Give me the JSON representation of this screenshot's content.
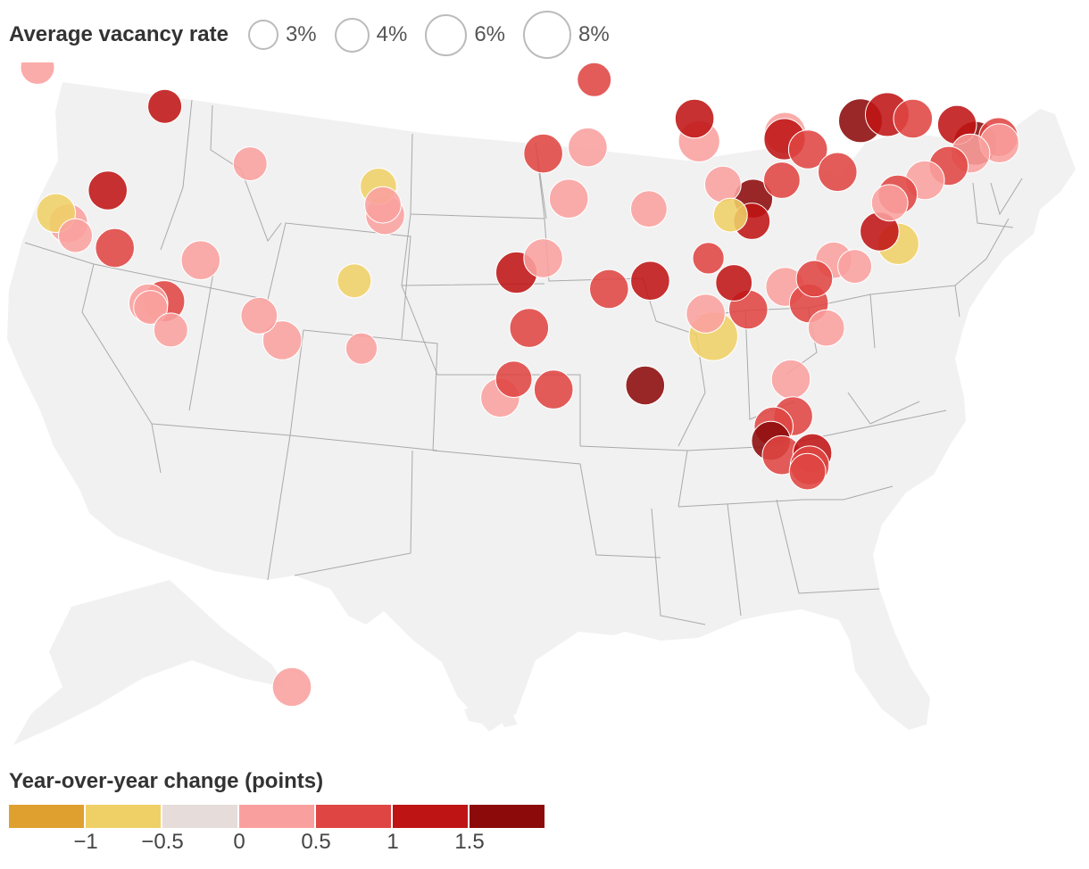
{
  "size_legend": {
    "title": "Average vacancy rate",
    "items": [
      {
        "label": "3%",
        "rate": 3
      },
      {
        "label": "4%",
        "rate": 4
      },
      {
        "label": "6%",
        "rate": 6
      },
      {
        "label": "8%",
        "rate": 8
      }
    ]
  },
  "color_legend": {
    "title": "Year-over-year change (points)",
    "bins": [
      {
        "color": "#e0a030"
      },
      {
        "color": "#efd066"
      },
      {
        "color": "#e6dcda"
      },
      {
        "color": "#f9a09e"
      },
      {
        "color": "#df4542"
      },
      {
        "color": "#bf1414"
      },
      {
        "color": "#8c0a0a"
      }
    ],
    "ticks": [
      "−1",
      "−0.5",
      "0",
      "0.5",
      "1",
      "1.5"
    ]
  },
  "chart_data": {
    "type": "proportional-symbol-map",
    "region": "United States (contiguous, metro areas)",
    "size_variable": "Average vacancy rate (%)",
    "color_variable": "Year-over-year change (points)",
    "color_breaks": [
      -1,
      -0.5,
      0,
      0.5,
      1,
      1.5
    ],
    "points": [
      {
        "lon": -122.3,
        "lat": 47.6,
        "rate": 4,
        "change": 0.3
      },
      {
        "lon": -122.7,
        "lat": 45.5,
        "rate": 4,
        "change": 0.4
      },
      {
        "lon": -116.2,
        "lat": 43.6,
        "rate": 4,
        "change": 1.2
      },
      {
        "lon": -119.8,
        "lat": 39.5,
        "rate": 5,
        "change": 1.3
      },
      {
        "lon": -122.2,
        "lat": 37.9,
        "rate": 5,
        "change": 0.4
      },
      {
        "lon": -122.8,
        "lat": 38.4,
        "rate": 5,
        "change": -1
      },
      {
        "lon": -121.9,
        "lat": 37.3,
        "rate": 4,
        "change": 0.1
      },
      {
        "lon": -119.8,
        "lat": 36.7,
        "rate": 5,
        "change": 0.9
      },
      {
        "lon": -118.3,
        "lat": 34.0,
        "rate": 5,
        "change": 0.3
      },
      {
        "lon": -118.2,
        "lat": 33.8,
        "rate": 4,
        "change": 0.0
      },
      {
        "lon": -117.2,
        "lat": 32.7,
        "rate": 4,
        "change": 0.4
      },
      {
        "lon": -117.4,
        "lat": 34.1,
        "rate": 5.5,
        "change": 0.9
      },
      {
        "lon": -115.1,
        "lat": 36.1,
        "rate": 5,
        "change": 0.4
      },
      {
        "lon": -111.9,
        "lat": 40.8,
        "rate": 4,
        "change": 0.0
      },
      {
        "lon": -112.1,
        "lat": 33.4,
        "rate": 4.5,
        "change": 0.4
      },
      {
        "lon": -110.9,
        "lat": 32.2,
        "rate": 5,
        "change": 0.4
      },
      {
        "lon": -105.0,
        "lat": 39.7,
        "rate": 4.5,
        "change": -1
      },
      {
        "lon": -104.8,
        "lat": 38.8,
        "rate": 4.5,
        "change": 0.4
      },
      {
        "lon": -104.7,
        "lat": 38.3,
        "rate": 5,
        "change": 0.4
      },
      {
        "lon": -106.6,
        "lat": 35.1,
        "rate": 4,
        "change": -0.6
      },
      {
        "lon": -106.4,
        "lat": 31.8,
        "rate": 3.5,
        "change": 0.4
      },
      {
        "lon": -97.5,
        "lat": 35.5,
        "rate": 5.5,
        "change": 1.3
      },
      {
        "lon": -96.0,
        "lat": 36.2,
        "rate": 5,
        "change": 0.4
      },
      {
        "lon": -96.8,
        "lat": 32.8,
        "rate": 5,
        "change": 0.9
      },
      {
        "lon": -97.7,
        "lat": 30.3,
        "rate": 4.5,
        "change": 0.9
      },
      {
        "lon": -98.5,
        "lat": 29.4,
        "rate": 5,
        "change": 0.4
      },
      {
        "lon": -95.4,
        "lat": 29.8,
        "rate": 5,
        "change": 0.9
      },
      {
        "lon": -96.0,
        "lat": 41.3,
        "rate": 5,
        "change": 0.9
      },
      {
        "lon": -93.6,
        "lat": 41.6,
        "rate": 5,
        "change": 0.0
      },
      {
        "lon": -94.6,
        "lat": 39.1,
        "rate": 5,
        "change": 0.4
      },
      {
        "lon": -93.3,
        "lat": 44.9,
        "rate": 4,
        "change": 0.9
      },
      {
        "lon": -90.2,
        "lat": 38.6,
        "rate": 4.5,
        "change": 0.0
      },
      {
        "lon": -92.3,
        "lat": 34.7,
        "rate": 5,
        "change": 0.9
      },
      {
        "lon": -90.0,
        "lat": 35.1,
        "rate": 5,
        "change": 1.2
      },
      {
        "lon": -90.1,
        "lat": 30.0,
        "rate": 5,
        "change": 1.6
      },
      {
        "lon": -87.9,
        "lat": 43.0,
        "rate": 5,
        "change": 1.2
      },
      {
        "lon": -87.6,
        "lat": 41.9,
        "rate": 5.5,
        "change": 0.4
      },
      {
        "lon": -86.2,
        "lat": 39.8,
        "rate": 4.5,
        "change": 0.0
      },
      {
        "lon": -85.7,
        "lat": 38.3,
        "rate": 4,
        "change": -0.6
      },
      {
        "lon": -84.5,
        "lat": 39.1,
        "rate": 5,
        "change": 1.6
      },
      {
        "lon": -84.5,
        "lat": 38.0,
        "rate": 4.5,
        "change": 1.2
      },
      {
        "lon": -83.0,
        "lat": 40.0,
        "rate": 4.5,
        "change": 0.9
      },
      {
        "lon": -86.8,
        "lat": 36.2,
        "rate": 3.5,
        "change": 0.9
      },
      {
        "lon": -85.3,
        "lat": 35.0,
        "rate": 4.5,
        "change": 1.2
      },
      {
        "lon": -83.0,
        "lat": 42.3,
        "rate": 5.5,
        "change": 0.4
      },
      {
        "lon": -83.0,
        "lat": 42.0,
        "rate": 5.5,
        "change": 1.2
      },
      {
        "lon": -81.7,
        "lat": 41.5,
        "rate": 5,
        "change": 0.9
      },
      {
        "lon": -80.0,
        "lat": 40.4,
        "rate": 5,
        "change": 0.9
      },
      {
        "lon": -79.0,
        "lat": 42.9,
        "rate": 6,
        "change": 1.6
      },
      {
        "lon": -77.6,
        "lat": 43.2,
        "rate": 6,
        "change": 1.3
      },
      {
        "lon": -76.2,
        "lat": 43.0,
        "rate": 5,
        "change": 0.9
      },
      {
        "lon": -73.8,
        "lat": 42.7,
        "rate": 5,
        "change": 1.2
      },
      {
        "lon": -71.5,
        "lat": 42.1,
        "rate": 5,
        "change": 0.9
      },
      {
        "lon": -71.4,
        "lat": 41.8,
        "rate": 5,
        "change": 0.4
      },
      {
        "lon": -72.7,
        "lat": 41.8,
        "rate": 6,
        "change": 1.6
      },
      {
        "lon": -72.9,
        "lat": 41.3,
        "rate": 5,
        "change": 0.0
      },
      {
        "lon": -74.0,
        "lat": 40.7,
        "rate": 5,
        "change": 0.9
      },
      {
        "lon": -75.2,
        "lat": 40.0,
        "rate": 5,
        "change": 0.0
      },
      {
        "lon": -76.6,
        "lat": 39.3,
        "rate": 5,
        "change": 0.9
      },
      {
        "lon": -77.0,
        "lat": 38.9,
        "rate": 4.5,
        "change": 0.4
      },
      {
        "lon": -77.4,
        "lat": 37.5,
        "rate": 5,
        "change": 1.2
      },
      {
        "lon": -76.3,
        "lat": 36.9,
        "rate": 5.5,
        "change": -0.6
      },
      {
        "lon": -79.8,
        "lat": 36.1,
        "rate": 4.5,
        "change": 0.4
      },
      {
        "lon": -78.6,
        "lat": 35.8,
        "rate": 4,
        "change": 0.4
      },
      {
        "lon": -80.8,
        "lat": 35.2,
        "rate": 4.5,
        "change": 0.9
      },
      {
        "lon": -82.4,
        "lat": 34.8,
        "rate": 5,
        "change": 0.0
      },
      {
        "lon": -81.0,
        "lat": 34.0,
        "rate": 5,
        "change": 0.9
      },
      {
        "lon": -79.9,
        "lat": 32.8,
        "rate": 4.5,
        "change": 0.4
      },
      {
        "lon": -84.4,
        "lat": 33.7,
        "rate": 5,
        "change": 0.9
      },
      {
        "lon": -86.8,
        "lat": 33.5,
        "rate": 5,
        "change": 0.0
      },
      {
        "lon": -86.3,
        "lat": 32.4,
        "rate": 7,
        "change": -0.6
      },
      {
        "lon": -81.7,
        "lat": 30.3,
        "rate": 5,
        "change": 0.4
      },
      {
        "lon": -81.4,
        "lat": 28.5,
        "rate": 5,
        "change": 0.9
      },
      {
        "lon": -82.5,
        "lat": 28.0,
        "rate": 5,
        "change": 0.9
      },
      {
        "lon": -82.6,
        "lat": 27.3,
        "rate": 5,
        "change": 1.6
      },
      {
        "lon": -81.9,
        "lat": 26.6,
        "rate": 5,
        "change": 0.9
      },
      {
        "lon": -80.1,
        "lat": 26.7,
        "rate": 5,
        "change": 1.2
      },
      {
        "lon": -80.2,
        "lat": 26.1,
        "rate": 5,
        "change": 0.9
      },
      {
        "lon": -80.3,
        "lat": 25.8,
        "rate": 4.5,
        "change": 0.9
      },
      {
        "lon": -149.9,
        "lat": 61.2,
        "rate": 5,
        "change": 0.0
      }
    ]
  }
}
